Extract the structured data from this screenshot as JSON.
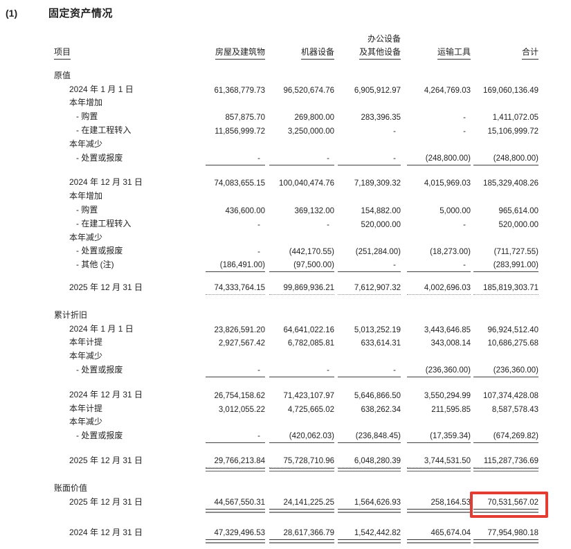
{
  "page": {
    "number_label": "(1)",
    "title": "固定资产情况"
  },
  "highlight": {
    "color": "#e23c33"
  },
  "table": {
    "headers": {
      "item": "项目",
      "col1": "房屋及建筑物",
      "col2": "机器设备",
      "col3_line1": "办公设备",
      "col3_line2": "及其他设备",
      "col4": "运输工具",
      "col5": "合计"
    },
    "rows": [
      {
        "type": "section",
        "label": "原值",
        "indent": 0
      },
      {
        "type": "data",
        "label": "2024 年 1 月 1 日",
        "indent": 1,
        "values": [
          "61,368,779.73",
          "96,520,674.76",
          "6,905,912.97",
          "4,264,769.03",
          "169,060,136.49"
        ],
        "rule": "none"
      },
      {
        "type": "section",
        "label": "本年增加",
        "indent": 1
      },
      {
        "type": "data",
        "label": "- 购置",
        "indent": 2,
        "values": [
          "857,875.70",
          "269,800.00",
          "283,396.35",
          "-",
          "1,411,072.05"
        ],
        "rule": "none"
      },
      {
        "type": "data",
        "label": "- 在建工程转入",
        "indent": 2,
        "values": [
          "11,856,999.72",
          "3,250,000.00",
          "-",
          "-",
          "15,106,999.72"
        ],
        "rule": "none"
      },
      {
        "type": "section",
        "label": "本年减少",
        "indent": 1
      },
      {
        "type": "data",
        "label": "- 处置或报废",
        "indent": 2,
        "values": [
          "-",
          "-",
          "-",
          "(248,800.00)",
          "(248,800.00)"
        ],
        "rule": "single"
      },
      {
        "type": "spacer",
        "h": 16
      },
      {
        "type": "data",
        "label": "2024 年 12 月 31 日",
        "indent": 1,
        "values": [
          "74,083,655.15",
          "100,040,474.76",
          "7,189,309.32",
          "4,015,969.03",
          "185,329,408.26"
        ],
        "rule": "none"
      },
      {
        "type": "section",
        "label": "本年增加",
        "indent": 1
      },
      {
        "type": "data",
        "label": "- 购置",
        "indent": 2,
        "values": [
          "436,600.00",
          "369,132.00",
          "154,882.00",
          "5,000.00",
          "965,614.00"
        ],
        "rule": "none"
      },
      {
        "type": "data",
        "label": "- 在建工程转入",
        "indent": 2,
        "values": [
          "-",
          "-",
          "520,000.00",
          "-",
          "520,000.00"
        ],
        "rule": "none"
      },
      {
        "type": "section",
        "label": "本年减少",
        "indent": 1
      },
      {
        "type": "data",
        "label": "- 处置或报废",
        "indent": 2,
        "values": [
          "-",
          "(442,170.55)",
          "(251,284.00)",
          "(18,273.00)",
          "(711,727.55)"
        ],
        "rule": "none"
      },
      {
        "type": "data",
        "label": "- 其他 (注)",
        "indent": 2,
        "values": [
          "(186,491.00)",
          "(97,500.00)",
          "-",
          "-",
          "(283,991.00)"
        ],
        "rule": "single"
      },
      {
        "type": "spacer",
        "h": 13
      },
      {
        "type": "data",
        "label": "2025 年 12 月 31 日",
        "indent": 1,
        "values": [
          "74,333,764.15",
          "99,869,936.21",
          "7,612,907.32",
          "4,002,696.03",
          "185,819,303.71"
        ],
        "rule": "dotted"
      },
      {
        "type": "spacer",
        "h": 20
      },
      {
        "type": "section",
        "label": "累计折旧",
        "indent": 0
      },
      {
        "type": "data",
        "label": "2024 年 1 月 1 日",
        "indent": 1,
        "values": [
          "23,826,591.20",
          "64,641,022.16",
          "5,013,252.19",
          "3,443,646.85",
          "96,924,512.40"
        ],
        "rule": "none"
      },
      {
        "type": "data",
        "label": "本年计提",
        "indent": 1,
        "values": [
          "2,927,567.42",
          "6,782,085.81",
          "633,614.31",
          "343,008.14",
          "10,686,275.68"
        ],
        "rule": "none"
      },
      {
        "type": "section",
        "label": "本年减少",
        "indent": 1
      },
      {
        "type": "data",
        "label": "- 处置或报废",
        "indent": 2,
        "values": [
          "-",
          "-",
          "-",
          "(236,360.00)",
          "(236,360.00)"
        ],
        "rule": "single"
      },
      {
        "type": "spacer",
        "h": 16
      },
      {
        "type": "data",
        "label": "2024 年 12 月 31 日",
        "indent": 1,
        "values": [
          "26,754,158.62",
          "71,423,107.97",
          "5,646,866.50",
          "3,550,294.99",
          "107,374,428.08"
        ],
        "rule": "none"
      },
      {
        "type": "data",
        "label": "本年计提",
        "indent": 1,
        "values": [
          "3,012,055.22",
          "4,725,665.02",
          "638,262.34",
          "211,595.85",
          "8,587,578.43"
        ],
        "rule": "none"
      },
      {
        "type": "section",
        "label": "本年减少",
        "indent": 1
      },
      {
        "type": "data",
        "label": "- 处置或报废",
        "indent": 2,
        "values": [
          "-",
          "(420,062.03)",
          "(236,848.45)",
          "(17,359.34)",
          "(674,269.82)"
        ],
        "rule": "single"
      },
      {
        "type": "spacer",
        "h": 16
      },
      {
        "type": "data",
        "label": "2025 年 12 月 31 日",
        "indent": 1,
        "values": [
          "29,766,213.84",
          "75,728,710.96",
          "6,048,280.39",
          "3,744,531.50",
          "115,287,736.69"
        ],
        "rule": "dotted-double"
      },
      {
        "type": "spacer",
        "h": 20
      },
      {
        "type": "section",
        "label": "账面价值",
        "indent": 0
      },
      {
        "type": "data",
        "label": "2025 年 12 月 31 日",
        "indent": 1,
        "values": [
          "44,567,550.31",
          "24,141,225.25",
          "1,564,626.93",
          "258,164.53",
          "70,531,567.02"
        ],
        "rule": "double",
        "highlight_last": true
      },
      {
        "type": "spacer",
        "h": 25
      },
      {
        "type": "data",
        "label": "2024 年 12 月 31 日",
        "indent": 1,
        "values": [
          "47,329,496.53",
          "28,617,366.79",
          "1,542,442.82",
          "465,674.04",
          "77,954,980.18"
        ],
        "rule": "double"
      }
    ]
  }
}
